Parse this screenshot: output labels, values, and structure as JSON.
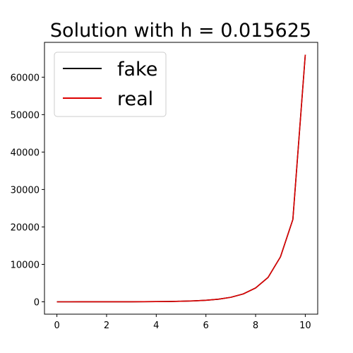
{
  "chart_data": {
    "type": "line",
    "title": "Solution with h = 0.015625",
    "xlabel": "",
    "ylabel": "",
    "xlim": [
      -0.5,
      10.5
    ],
    "ylim": [
      -3300,
      69300
    ],
    "xticks": [
      0,
      2,
      4,
      6,
      8,
      10
    ],
    "xtick_labels": [
      "0",
      "2",
      "4",
      "6",
      "8",
      "10"
    ],
    "yticks": [
      0,
      10000,
      20000,
      30000,
      40000,
      50000,
      60000
    ],
    "ytick_labels": [
      "0",
      "10000",
      "20000",
      "30000",
      "40000",
      "50000",
      "60000"
    ],
    "grid": false,
    "legend_position": "top-left",
    "x": [
      0,
      0.5,
      1,
      1.5,
      2,
      2.5,
      3,
      3.5,
      4,
      4.5,
      5,
      5.5,
      6,
      6.5,
      7,
      7.5,
      8,
      8.5,
      9,
      9.5,
      10
    ],
    "series": [
      {
        "name": "fake",
        "color": "#000000",
        "values": [
          1,
          2,
          3,
          5,
          8,
          12,
          18,
          30,
          50,
          90,
          150,
          250,
          420,
          700,
          1200,
          2100,
          3700,
          6500,
          12000,
          22000,
          66000
        ]
      },
      {
        "name": "real",
        "color": "#dd0000",
        "values": [
          1,
          2,
          3,
          5,
          8,
          12,
          18,
          30,
          50,
          90,
          150,
          250,
          420,
          700,
          1200,
          2100,
          3700,
          6500,
          12000,
          22000,
          66000
        ]
      }
    ]
  }
}
